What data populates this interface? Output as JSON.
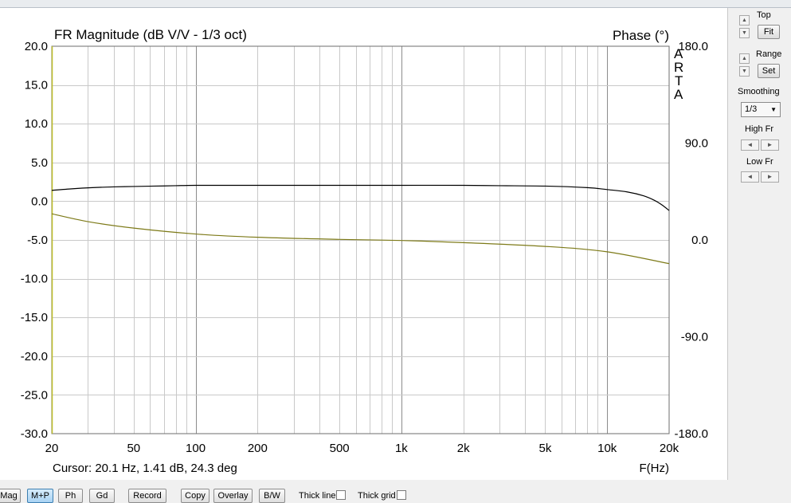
{
  "chart_data": {
    "type": "line",
    "title": "FR Magnitude (dB V/V - 1/3 oct)",
    "right_title": "Phase (°)",
    "watermark": [
      "A",
      "R",
      "T",
      "A"
    ],
    "xlabel": "F(Hz)",
    "x_scale": "log",
    "xlim": [
      20,
      20000
    ],
    "x_ticks": [
      20,
      50,
      100,
      200,
      500,
      1000,
      2000,
      5000,
      10000,
      20000
    ],
    "x_tick_labels": [
      "20",
      "50",
      "100",
      "200",
      "500",
      "1k",
      "2k",
      "5k",
      "10k",
      "20k"
    ],
    "ylim": [
      -30,
      20
    ],
    "y_ticks": [
      20,
      15,
      10,
      5,
      0,
      -5,
      -10,
      -15,
      -20,
      -25,
      -30
    ],
    "y_tick_labels": [
      "20.0",
      "15.0",
      "10.0",
      "5.0",
      "0.0",
      "-5.0",
      "-10.0",
      "-15.0",
      "-20.0",
      "-25.0",
      "-30.0"
    ],
    "y2lim": [
      -180,
      180
    ],
    "y2_ticks": [
      180,
      90,
      0,
      -90,
      -180
    ],
    "y2_tick_labels": [
      "180.0",
      "90.0",
      "0.0",
      "-90.0",
      "-180.0"
    ],
    "grid": true,
    "series": [
      {
        "axis": "magnitude",
        "color": "#000000",
        "x": [
          20,
          25,
          31.5,
          40,
          50,
          63,
          80,
          100,
          200,
          500,
          1000,
          2000,
          3000,
          5000,
          8000,
          10000,
          12500,
          15000,
          17000,
          18500,
          20000
        ],
        "y": [
          1.4,
          1.6,
          1.75,
          1.85,
          1.9,
          1.95,
          2.0,
          2.05,
          2.05,
          2.05,
          2.05,
          2.05,
          2.0,
          1.95,
          1.75,
          1.5,
          1.2,
          0.7,
          0.1,
          -0.5,
          -1.2
        ]
      },
      {
        "axis": "phase",
        "color": "#7d7a18",
        "x": [
          20,
          30,
          50,
          100,
          200,
          500,
          1000,
          2000,
          5000,
          10000,
          20000
        ],
        "y": [
          24.3,
          17,
          11,
          5.5,
          2.5,
          0.5,
          -0.5,
          -2.5,
          -6,
          -11,
          -22
        ]
      }
    ]
  },
  "cursor_text": "Cursor: 20.1 Hz, 1.41 dB, 24.3 deg",
  "side_panel": {
    "top_label": "Top",
    "fit_button": "Fit",
    "range_label": "Range",
    "set_button": "Set",
    "smoothing_label": "Smoothing",
    "smoothing_value": "1/3",
    "high_fr_label": "High Fr",
    "low_fr_label": "Low Fr"
  },
  "toolbar": {
    "buttons": [
      "Mag",
      "M+P",
      "Ph",
      "Gd",
      "Record",
      "Copy",
      "Overlay",
      "B/W"
    ],
    "active": "M+P",
    "thick_line_label": "Thick line",
    "thick_grid_label": "Thick grid"
  }
}
